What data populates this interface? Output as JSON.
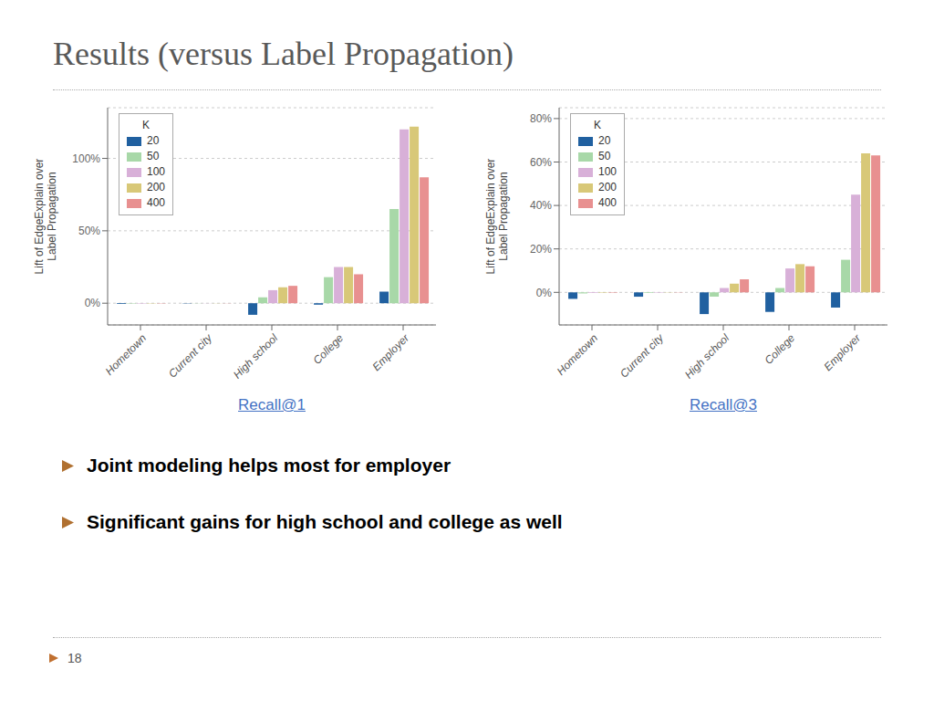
{
  "title": "Results (versus Label Propagation)",
  "annotations": [
    "Joint modeling helps most for employer",
    "Significant gains for high school and college as well",
    "18"
  ],
  "chart_data": [
    {
      "type": "bar",
      "xlabel": "Recall@1",
      "ylabel": "Lift of EdgeExplain over\nLabel Propagation",
      "categories": [
        "Hometown",
        "Current city",
        "High school",
        "College",
        "Employer"
      ],
      "series": [
        {
          "name": "20",
          "color": "#2060a0",
          "values": [
            -0.5,
            -0.2,
            -8.0,
            -1.0,
            8.0
          ]
        },
        {
          "name": "50",
          "color": "#a8d8a8",
          "values": [
            -0.3,
            -0.1,
            4.0,
            18.0,
            65.0
          ]
        },
        {
          "name": "100",
          "color": "#d8b0d8",
          "values": [
            -0.3,
            -0.1,
            9.0,
            25.0,
            120.0
          ]
        },
        {
          "name": "200",
          "color": "#d8c878",
          "values": [
            -0.2,
            -0.1,
            11.0,
            25.0,
            122.0
          ]
        },
        {
          "name": "400",
          "color": "#e89090",
          "values": [
            -0.2,
            -0.1,
            12.0,
            20.0,
            87.0
          ]
        }
      ],
      "ylim": [
        -15,
        135
      ],
      "yticks": [
        {
          "value": 0,
          "label": "0%"
        },
        {
          "value": 50,
          "label": "50%"
        },
        {
          "value": 100,
          "label": "100%"
        }
      ],
      "grid": true,
      "legend": "upper left",
      "legend_title": "K"
    },
    {
      "type": "bar",
      "xlabel": "Recall@3",
      "ylabel": "Lift of EdgeExplain over\nLabel Propagation",
      "categories": [
        "Hometown",
        "Current city",
        "High school",
        "College",
        "Employer"
      ],
      "series": [
        {
          "name": "20",
          "color": "#2060a0",
          "values": [
            -3.0,
            -2.0,
            -10.0,
            -9.0,
            -7.0
          ]
        },
        {
          "name": "50",
          "color": "#a8d8a8",
          "values": [
            -0.5,
            -0.3,
            -2.0,
            2.0,
            15.0
          ]
        },
        {
          "name": "100",
          "color": "#d8b0d8",
          "values": [
            -0.3,
            -0.2,
            2.0,
            11.0,
            45.0
          ]
        },
        {
          "name": "200",
          "color": "#d8c878",
          "values": [
            -0.2,
            -0.1,
            4.0,
            13.0,
            64.0
          ]
        },
        {
          "name": "400",
          "color": "#e89090",
          "values": [
            -0.2,
            -0.1,
            6.0,
            12.0,
            63.0
          ]
        }
      ],
      "ylim": [
        -15,
        85
      ],
      "yticks": [
        {
          "value": 0,
          "label": "0%"
        },
        {
          "value": 20,
          "label": "20%"
        },
        {
          "value": 40,
          "label": "40%"
        },
        {
          "value": 60,
          "label": "60%"
        },
        {
          "value": 80,
          "label": "80%"
        }
      ],
      "grid": true,
      "legend": "upper left",
      "legend_title": "K"
    }
  ]
}
